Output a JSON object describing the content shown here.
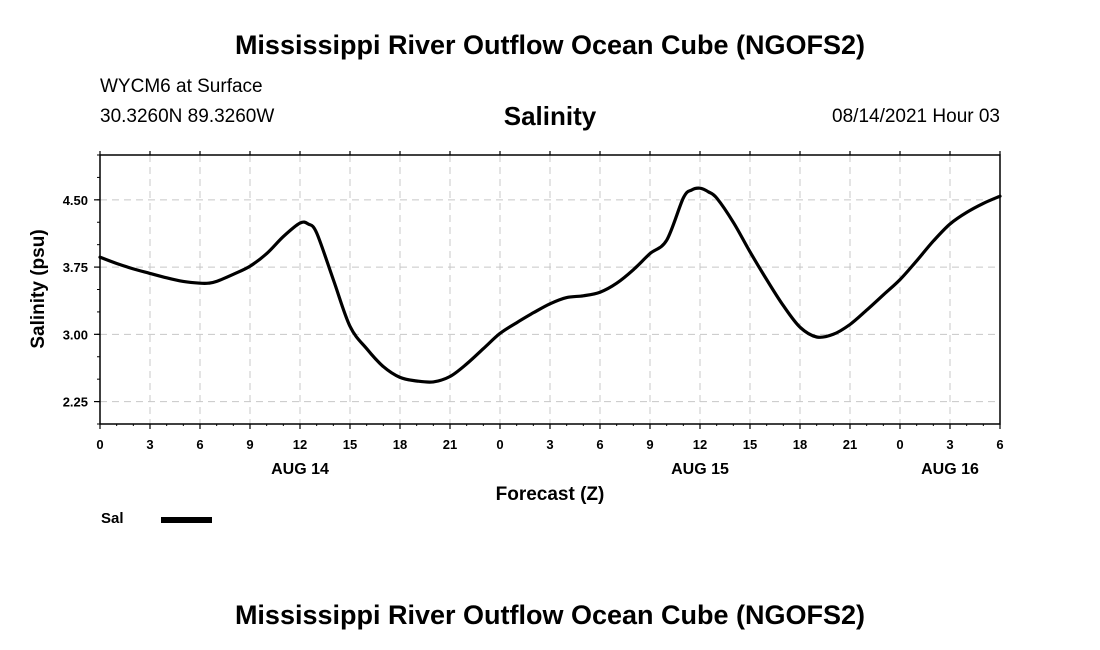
{
  "header": {
    "title": "Mississippi River Outflow Ocean Cube (NGOFS2)",
    "station": "WYCM6 at Surface",
    "coordinates": "30.3260N  89.3260W",
    "timestamp": "08/14/2021 Hour 03"
  },
  "footer": {
    "title": "Mississippi River Outflow Ocean Cube (NGOFS2)"
  },
  "chart_data": {
    "type": "line",
    "title": "Salinity",
    "xlabel": "Forecast (Z)",
    "ylabel": "Salinity (psu)",
    "xlim": [
      0,
      54
    ],
    "ylim": [
      2.0,
      5.0
    ],
    "grid": true,
    "x_ticks": [
      0,
      3,
      6,
      9,
      12,
      15,
      18,
      21,
      24,
      27,
      30,
      33,
      36,
      39,
      42,
      45,
      48,
      51,
      54
    ],
    "x_tick_labels": [
      "0",
      "3",
      "6",
      "9",
      "12",
      "15",
      "18",
      "21",
      "0",
      "3",
      "6",
      "9",
      "12",
      "15",
      "18",
      "21",
      "0",
      "3",
      "6"
    ],
    "y_ticks": [
      2.25,
      3.0,
      3.75,
      4.5
    ],
    "y_tick_labels": [
      "2.25",
      "3.00",
      "3.75",
      "4.50"
    ],
    "date_labels": [
      {
        "x": 12,
        "label": "AUG 14"
      },
      {
        "x": 36,
        "label": "AUG 15"
      },
      {
        "x": 51,
        "label": "AUG 16"
      }
    ],
    "series": [
      {
        "name": "Sal",
        "x": [
          0,
          1,
          2,
          3,
          4,
          5,
          6,
          6.5,
          7,
          8,
          9,
          10,
          11,
          12,
          12.5,
          13,
          14,
          15,
          16,
          17,
          18,
          19,
          20,
          21,
          22,
          23,
          24,
          25,
          26,
          27,
          28,
          29,
          30,
          31,
          32,
          33,
          34,
          35,
          35.5,
          36,
          36.5,
          37,
          38,
          39,
          40,
          41,
          42,
          43,
          44,
          45,
          46,
          47,
          48,
          49,
          50,
          51,
          52,
          53,
          54
        ],
        "y": [
          3.86,
          3.79,
          3.73,
          3.68,
          3.63,
          3.59,
          3.57,
          3.57,
          3.59,
          3.67,
          3.76,
          3.9,
          4.09,
          4.24,
          4.23,
          4.13,
          3.61,
          3.09,
          2.84,
          2.64,
          2.52,
          2.48,
          2.47,
          2.53,
          2.67,
          2.84,
          3.01,
          3.13,
          3.24,
          3.34,
          3.41,
          3.43,
          3.47,
          3.57,
          3.72,
          3.9,
          4.05,
          4.52,
          4.61,
          4.63,
          4.59,
          4.52,
          4.25,
          3.92,
          3.61,
          3.32,
          3.08,
          2.97,
          3.0,
          3.11,
          3.27,
          3.44,
          3.61,
          3.82,
          4.04,
          4.23,
          4.36,
          4.46,
          4.54
        ]
      }
    ],
    "legend": {
      "label": "Sal",
      "position": "bottom-left"
    }
  },
  "colors": {
    "line": "#000000",
    "grid": "#c8c8c8",
    "background": "#ffffff"
  }
}
